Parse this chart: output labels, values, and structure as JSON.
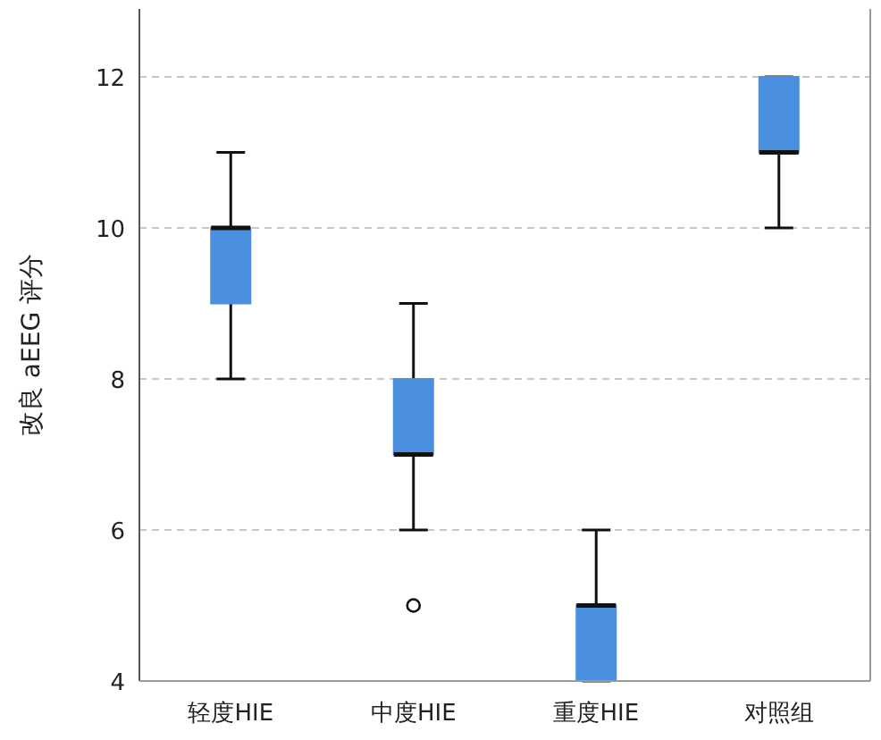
{
  "chart_data": {
    "type": "box",
    "ylabel": "改良 aEEG 评分",
    "categories": [
      "轻度HIE",
      "中度HIE",
      "重度HIE",
      "对照组"
    ],
    "series": [
      {
        "color": "#4a8fe0",
        "boxes": [
          {
            "low": 8,
            "q1": 9,
            "median": 10,
            "q3": 10,
            "high": 11
          },
          {
            "low": 6,
            "q1": 7,
            "median": 7,
            "q3": 8,
            "high": 9,
            "outliers": [
              5
            ]
          },
          {
            "low": 4,
            "q1": 4,
            "median": 5,
            "q3": 5,
            "high": 6
          },
          {
            "low": 10,
            "q1": 11,
            "median": 11,
            "q3": 12,
            "high": 12
          }
        ]
      }
    ],
    "ylim": [
      4,
      12.9
    ],
    "yticks": [
      4,
      6,
      8,
      10,
      12
    ],
    "grid": "y"
  }
}
